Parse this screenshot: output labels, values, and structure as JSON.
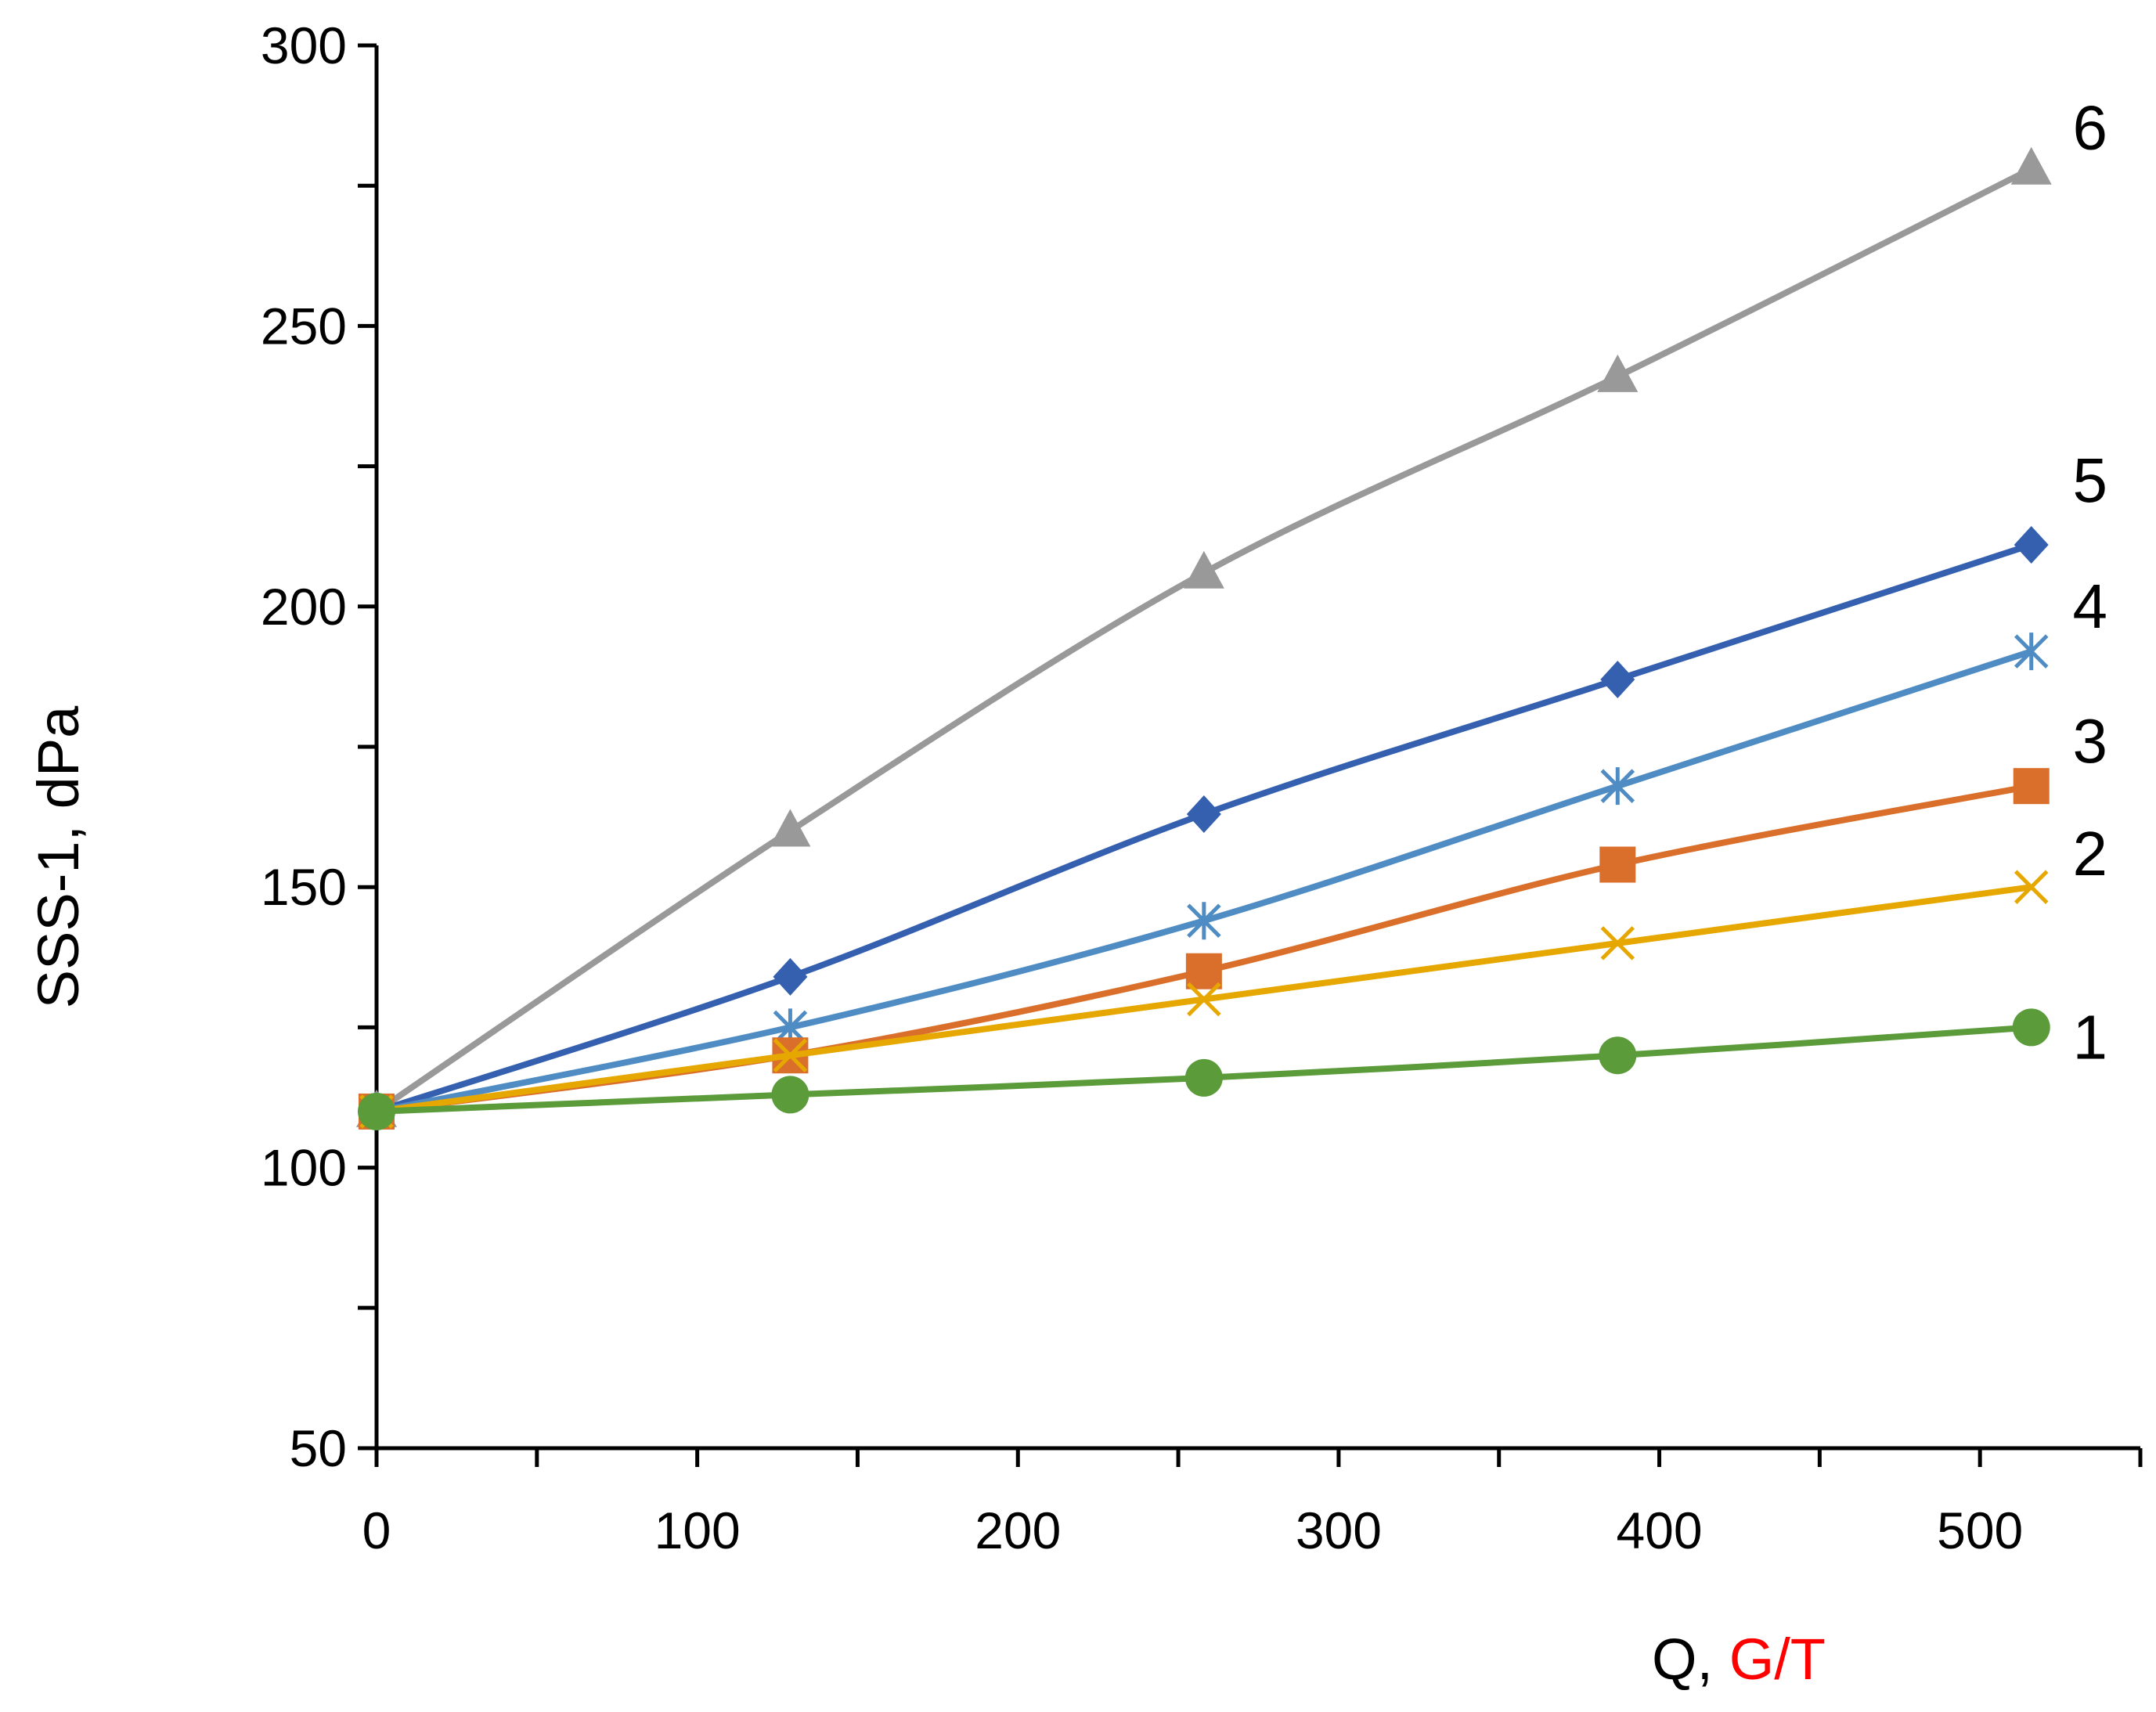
{
  "chart_data": {
    "type": "line",
    "title": "",
    "xlabel": "Q, ",
    "xlabel_unit": "G/T",
    "xlabel_unit_color": "#ff0000",
    "ylabel": "SSS-1, dPa",
    "xlim": [
      0,
      550
    ],
    "ylim": [
      50,
      300
    ],
    "xticks": [
      0,
      100,
      200,
      300,
      400,
      500
    ],
    "yticks": [
      50,
      100,
      150,
      200,
      250,
      300
    ],
    "x_minor_step": 50,
    "y_minor_step": 25,
    "grid": false,
    "legend": "none; series numbered at the right end of each line",
    "x": [
      0,
      129,
      258,
      387,
      516
    ],
    "series": [
      {
        "name": "1",
        "color": "#5b9b3a",
        "marker": "circle",
        "values": [
          110,
          113,
          116,
          120,
          125
        ]
      },
      {
        "name": "2",
        "color": "#e6a800",
        "marker": "x",
        "values": [
          110,
          120,
          130,
          140,
          150
        ]
      },
      {
        "name": "3",
        "color": "#d96f2b",
        "marker": "square",
        "values": [
          110,
          120,
          135,
          154,
          168
        ]
      },
      {
        "name": "4",
        "color": "#4f8cc4",
        "marker": "asterisk",
        "values": [
          110,
          125,
          144,
          168,
          192
        ]
      },
      {
        "name": "5",
        "color": "#3560b0",
        "marker": "diamond",
        "values": [
          110,
          134,
          163,
          187,
          211
        ]
      },
      {
        "name": "6",
        "color": "#999999",
        "marker": "triangle",
        "values": [
          110,
          160,
          206,
          241,
          278
        ]
      }
    ]
  }
}
